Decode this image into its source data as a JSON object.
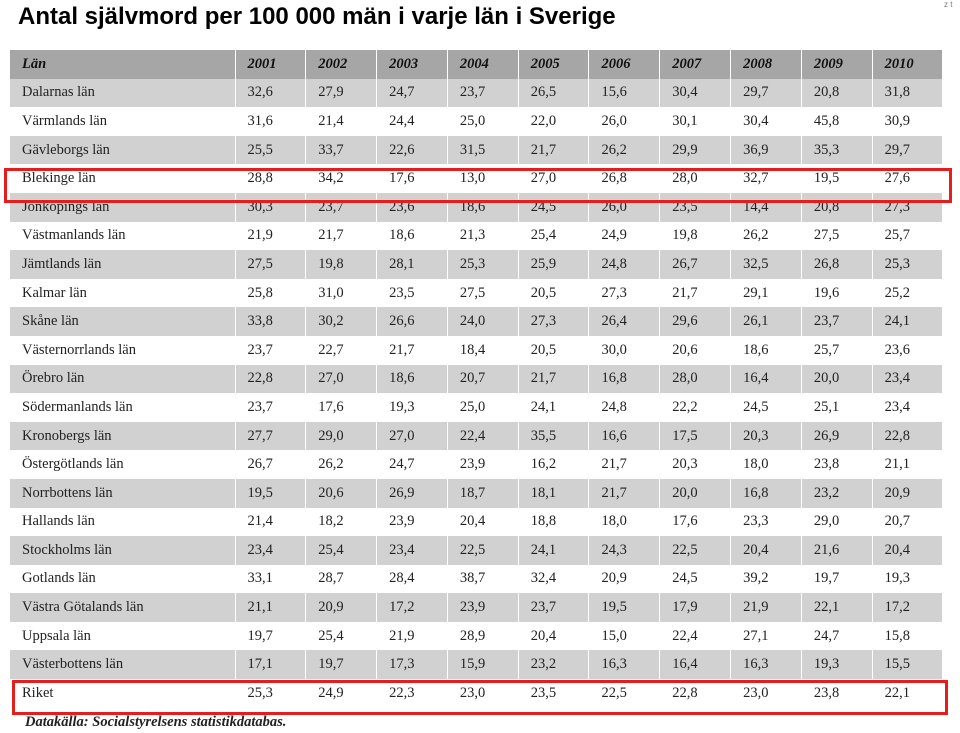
{
  "title": "Antal självmord per 100 000 män i varje län i Sverige",
  "corner_mark": "z t",
  "table": {
    "headers": [
      "Län",
      "2001",
      "2002",
      "2003",
      "2004",
      "2005",
      "2006",
      "2007",
      "2008",
      "2009",
      "2010"
    ],
    "rows": [
      [
        "Dalarnas län",
        "32,6",
        "27,9",
        "24,7",
        "23,7",
        "26,5",
        "15,6",
        "30,4",
        "29,7",
        "20,8",
        "31,8"
      ],
      [
        "Värmlands län",
        "31,6",
        "21,4",
        "24,4",
        "25,0",
        "22,0",
        "26,0",
        "30,1",
        "30,4",
        "45,8",
        "30,9"
      ],
      [
        "Gävleborgs län",
        "25,5",
        "33,7",
        "22,6",
        "31,5",
        "21,7",
        "26,2",
        "29,9",
        "36,9",
        "35,3",
        "29,7"
      ],
      [
        "Blekinge län",
        "28,8",
        "34,2",
        "17,6",
        "13,0",
        "27,0",
        "26,8",
        "28,0",
        "32,7",
        "19,5",
        "27,6"
      ],
      [
        "Jönköpings län",
        "30,3",
        "23,7",
        "23,6",
        "18,6",
        "24,5",
        "26,0",
        "23,5",
        "14,4",
        "20,8",
        "27,3"
      ],
      [
        "Västmanlands län",
        "21,9",
        "21,7",
        "18,6",
        "21,3",
        "25,4",
        "24,9",
        "19,8",
        "26,2",
        "27,5",
        "25,7"
      ],
      [
        "Jämtlands län",
        "27,5",
        "19,8",
        "28,1",
        "25,3",
        "25,9",
        "24,8",
        "26,7",
        "32,5",
        "26,8",
        "25,3"
      ],
      [
        "Kalmar län",
        "25,8",
        "31,0",
        "23,5",
        "27,5",
        "20,5",
        "27,3",
        "21,7",
        "29,1",
        "19,6",
        "25,2"
      ],
      [
        "Skåne län",
        "33,8",
        "30,2",
        "26,6",
        "24,0",
        "27,3",
        "26,4",
        "29,6",
        "26,1",
        "23,7",
        "24,1"
      ],
      [
        "Västernorrlands län",
        "23,7",
        "22,7",
        "21,7",
        "18,4",
        "20,5",
        "30,0",
        "20,6",
        "18,6",
        "25,7",
        "23,6"
      ],
      [
        "Örebro län",
        "22,8",
        "27,0",
        "18,6",
        "20,7",
        "21,7",
        "16,8",
        "28,0",
        "16,4",
        "20,0",
        "23,4"
      ],
      [
        "Södermanlands län",
        "23,7",
        "17,6",
        "19,3",
        "25,0",
        "24,1",
        "24,8",
        "22,2",
        "24,5",
        "25,1",
        "23,4"
      ],
      [
        "Kronobergs län",
        "27,7",
        "29,0",
        "27,0",
        "22,4",
        "35,5",
        "16,6",
        "17,5",
        "20,3",
        "26,9",
        "22,8"
      ],
      [
        "Östergötlands län",
        "26,7",
        "26,2",
        "24,7",
        "23,9",
        "16,2",
        "21,7",
        "20,3",
        "18,0",
        "23,8",
        "21,1"
      ],
      [
        "Norrbottens län",
        "19,5",
        "20,6",
        "26,9",
        "18,7",
        "18,1",
        "21,7",
        "20,0",
        "16,8",
        "23,2",
        "20,9"
      ],
      [
        "Hallands län",
        "21,4",
        "18,2",
        "23,9",
        "20,4",
        "18,8",
        "18,0",
        "17,6",
        "23,3",
        "29,0",
        "20,7"
      ],
      [
        "Stockholms län",
        "23,4",
        "25,4",
        "23,4",
        "22,5",
        "24,1",
        "24,3",
        "22,5",
        "20,4",
        "21,6",
        "20,4"
      ],
      [
        "Gotlands län",
        "33,1",
        "28,7",
        "28,4",
        "38,7",
        "32,4",
        "20,9",
        "24,5",
        "39,2",
        "19,7",
        "19,3"
      ],
      [
        "Västra Götalands län",
        "21,1",
        "20,9",
        "17,2",
        "23,9",
        "23,7",
        "19,5",
        "17,9",
        "21,9",
        "22,1",
        "17,2"
      ],
      [
        "Uppsala län",
        "19,7",
        "25,4",
        "21,9",
        "28,9",
        "20,4",
        "15,0",
        "22,4",
        "27,1",
        "24,7",
        "15,8"
      ],
      [
        "Västerbottens län",
        "17,1",
        "19,7",
        "17,3",
        "15,9",
        "23,2",
        "16,3",
        "16,4",
        "16,3",
        "19,3",
        "15,5"
      ],
      [
        "Riket",
        "25,3",
        "24,9",
        "22,3",
        "23,0",
        "23,5",
        "22,5",
        "22,8",
        "23,0",
        "23,8",
        "22,1"
      ]
    ]
  },
  "highlighted_rows": [
    "Blekinge län",
    "Riket"
  ],
  "highlight_color": "#e41d1d",
  "source": "Datakälla: Socialstyrelsens statistikdatabas."
}
